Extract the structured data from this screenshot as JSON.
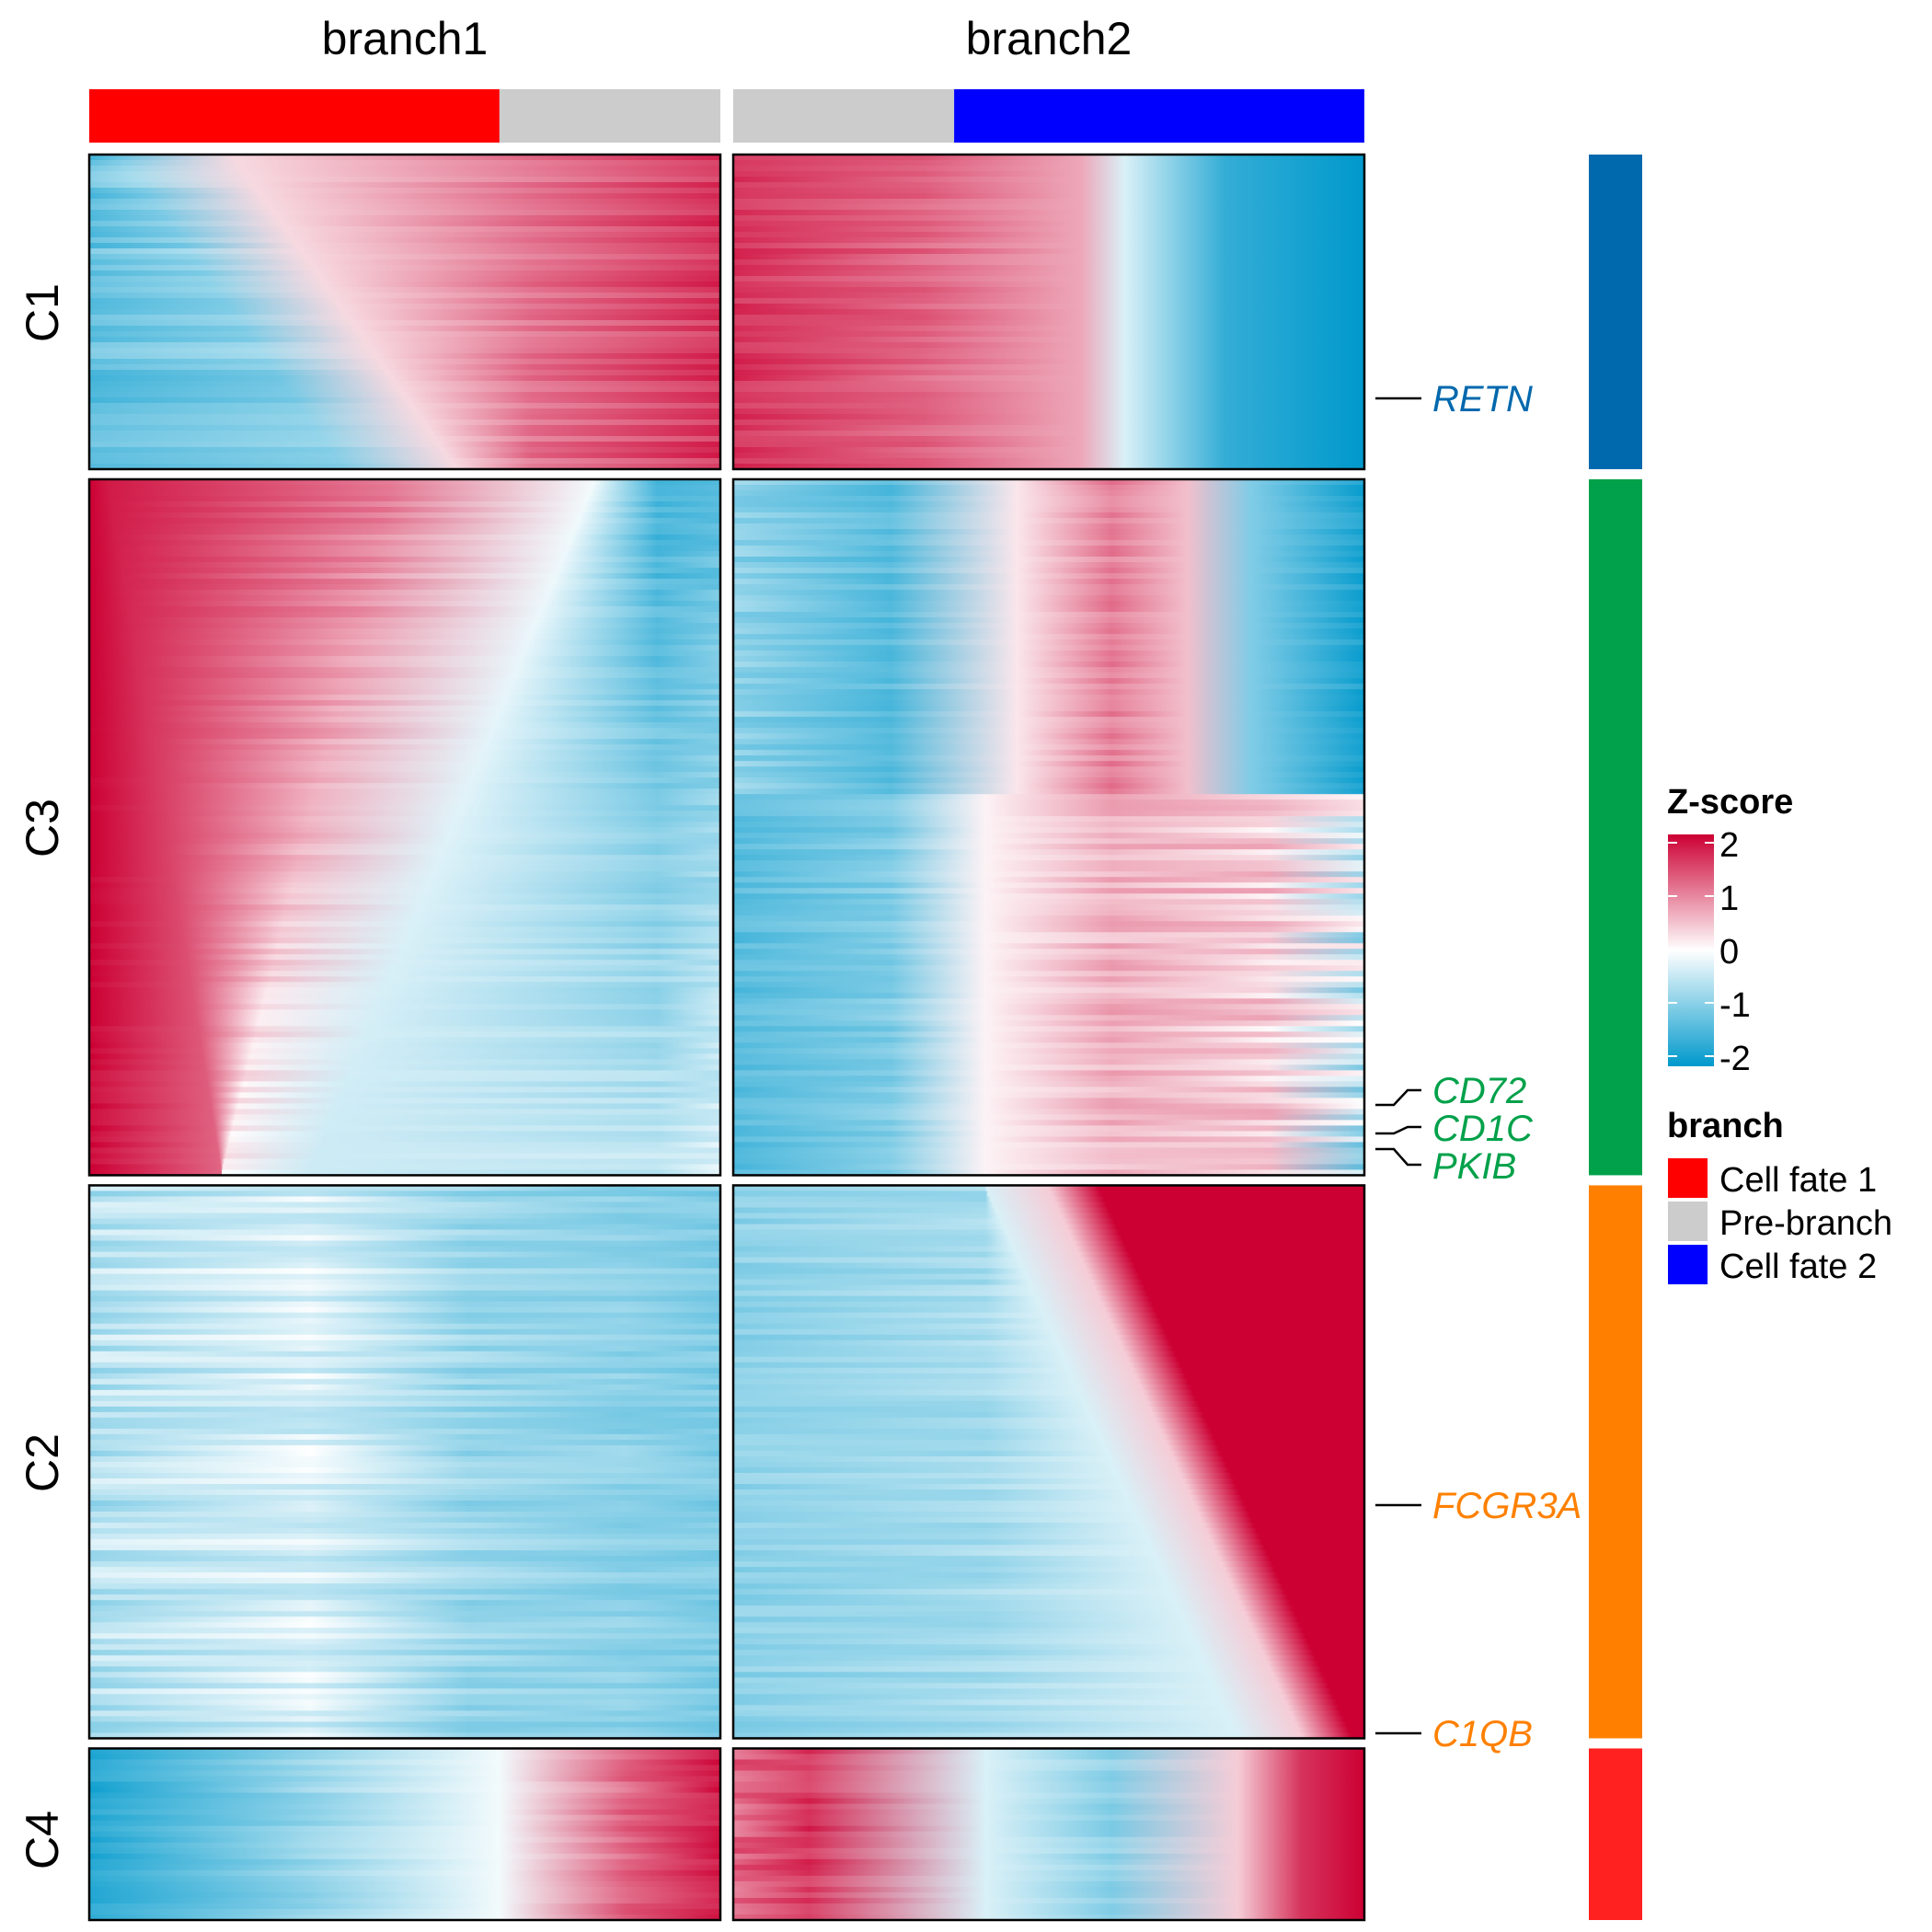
{
  "chart_data": {
    "type": "heatmap",
    "columns": [
      {
        "label": "branch1",
        "segments": [
          {
            "category": "Cell fate 1",
            "from": 0,
            "to": 0.65
          },
          {
            "category": "Pre-branch",
            "from": 0.65,
            "to": 1
          }
        ]
      },
      {
        "label": "branch2",
        "segments": [
          {
            "category": "Pre-branch",
            "from": 0,
            "to": 0.35
          },
          {
            "category": "Cell fate 2",
            "from": 0.35,
            "to": 1
          }
        ]
      }
    ],
    "row_clusters": [
      {
        "label": "C1",
        "color": "#0068AD",
        "share": 0.165,
        "pattern": [
          "low to high",
          "high to low"
        ]
      },
      {
        "label": "C3",
        "color": "#00A14A",
        "share": 0.365,
        "pattern": [
          "high to low",
          "low, mid high, mixed"
        ]
      },
      {
        "label": "C2",
        "color": "#FF8000",
        "share": 0.29,
        "pattern": [
          "near zero / low",
          "low to high"
        ]
      },
      {
        "label": "C4",
        "color": "#FF2020",
        "share": 0.09,
        "pattern": [
          "low to high",
          "high, dip, high"
        ]
      }
    ],
    "gene_labels": [
      {
        "gene": "RETN",
        "cluster": "C1",
        "color": "#0068AD"
      },
      {
        "gene": "CD72",
        "cluster": "C3",
        "color": "#00A14A"
      },
      {
        "gene": "CD1C",
        "cluster": "C3",
        "color": "#00A14A"
      },
      {
        "gene": "PKIB",
        "cluster": "C3",
        "color": "#00A14A"
      },
      {
        "gene": "FCGR3A",
        "cluster": "C2",
        "color": "#FF8000"
      },
      {
        "gene": "C1QB",
        "cluster": "C2",
        "color": "#FF8000"
      }
    ],
    "color_scale": {
      "title": "Z-score",
      "range": [
        -2,
        2
      ],
      "ticks": [
        "2",
        "1",
        "0",
        "-1",
        "-2"
      ],
      "colors": {
        "low": "#0099CC",
        "mid": "#FFFFFF",
        "high": "#CC0033"
      }
    },
    "legend": {
      "title": "branch",
      "entries": [
        {
          "label": "Cell fate 1",
          "color": "#FF0000"
        },
        {
          "label": "Pre-branch",
          "color": "#CCCCCC"
        },
        {
          "label": "Cell fate 2",
          "color": "#0000FF"
        }
      ]
    }
  }
}
